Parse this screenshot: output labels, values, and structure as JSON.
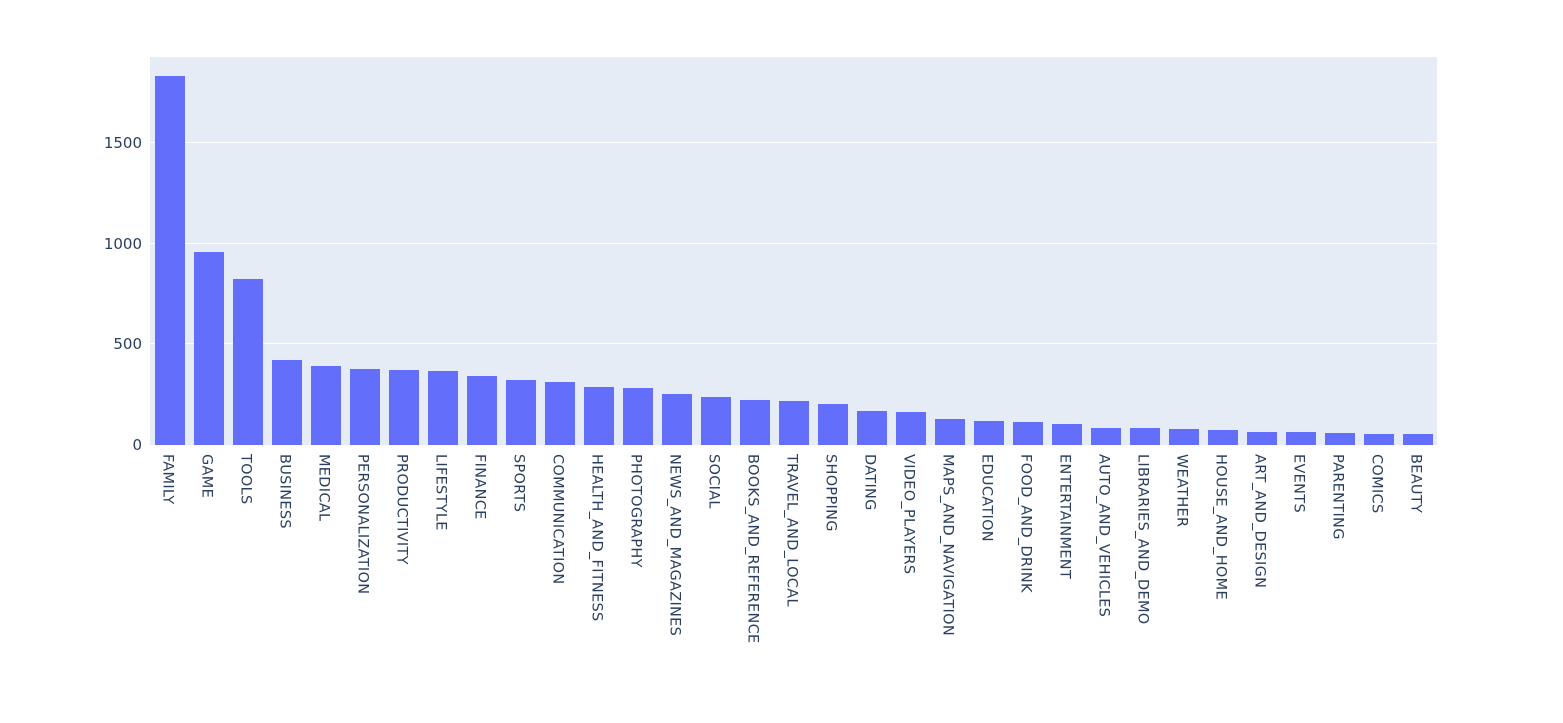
{
  "chart_data": {
    "type": "bar",
    "title": "",
    "xlabel": "",
    "ylabel": "",
    "categories": [
      "FAMILY",
      "GAME",
      "TOOLS",
      "BUSINESS",
      "MEDICAL",
      "PERSONALIZATION",
      "PRODUCTIVITY",
      "LIFESTYLE",
      "FINANCE",
      "SPORTS",
      "COMMUNICATION",
      "HEALTH_AND_FITNESS",
      "PHOTOGRAPHY",
      "NEWS_AND_MAGAZINES",
      "SOCIAL",
      "BOOKS_AND_REFERENCE",
      "TRAVEL_AND_LOCAL",
      "SHOPPING",
      "DATING",
      "VIDEO_PLAYERS",
      "MAPS_AND_NAVIGATION",
      "EDUCATION",
      "FOOD_AND_DRINK",
      "ENTERTAINMENT",
      "AUTO_AND_VEHICLES",
      "LIBRARIES_AND_DEMO",
      "WEATHER",
      "HOUSE_AND_HOME",
      "ART_AND_DESIGN",
      "EVENTS",
      "PARENTING",
      "COMICS",
      "BEAUTY"
    ],
    "values": [
      1832,
      959,
      827,
      420,
      395,
      376,
      374,
      369,
      345,
      325,
      315,
      288,
      281,
      254,
      239,
      222,
      219,
      202,
      171,
      163,
      131,
      119,
      112,
      102,
      85,
      84,
      79,
      74,
      64,
      64,
      60,
      56,
      53
    ],
    "yticks": [
      0,
      500,
      1000,
      1500
    ],
    "ylim": [
      0,
      1928
    ],
    "grid": true,
    "legend_visible": false,
    "x_tick_angle": 90,
    "colors": {
      "bar": "#636EFA",
      "plot_background": "#E5ECF6",
      "paper_background": "#FFFFFF",
      "gridline": "#FFFFFF",
      "tick_label": "#2A3F5F"
    }
  }
}
